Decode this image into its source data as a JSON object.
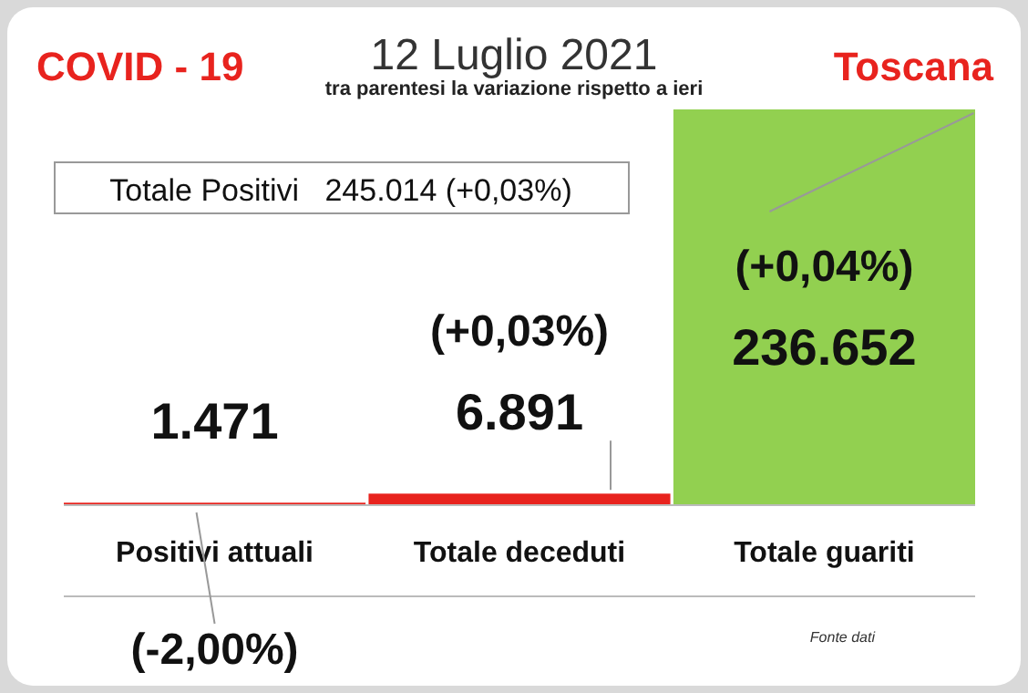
{
  "chart_data": {
    "type": "bar",
    "title": "12 Luglio 2021",
    "subtitle": "tra parentesi la variazione rispetto a ieri",
    "categories": [
      "Positivi attuali",
      "Totale deceduti",
      "Totale guariti"
    ],
    "values": [
      1471,
      6891,
      236652
    ],
    "colors": [
      "#e8231e",
      "#e8231e",
      "#92d050"
    ],
    "value_labels": [
      "1.471",
      "6.891",
      "236.652"
    ],
    "annotations": [
      "(-2,00%)",
      "(+0,03%)",
      "(+0,04%)",
      "COVID - 19",
      "Toscana",
      "Totale Positivi   245.014 (+0,03%)",
      "Fonte dati"
    ]
  }
}
